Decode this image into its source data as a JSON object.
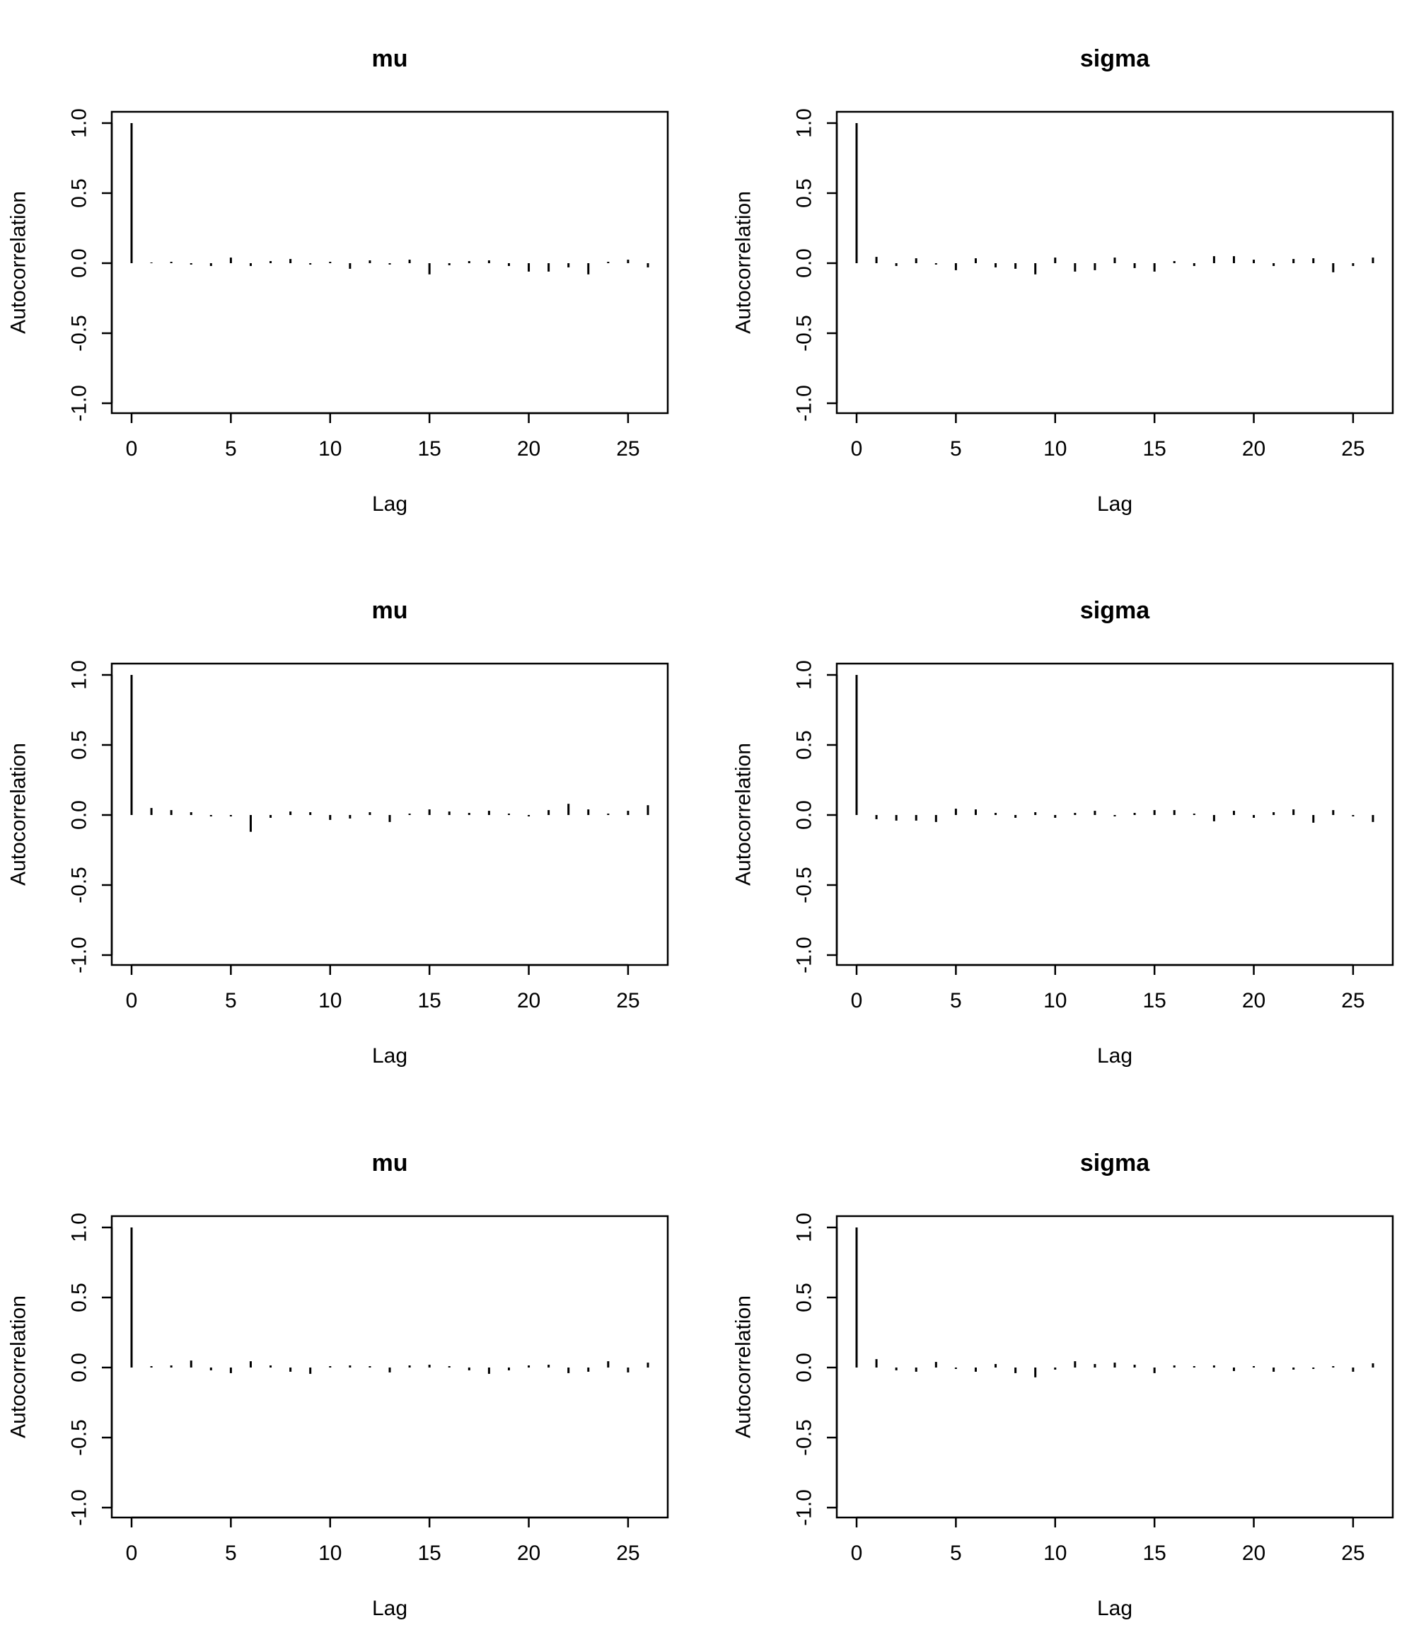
{
  "chart_data": [
    {
      "type": "bar",
      "title": "mu",
      "xlabel": "Lag",
      "ylabel": "Autocorrelation",
      "xlim": [
        0,
        26
      ],
      "ylim": [
        -1.0,
        1.0
      ],
      "xticks": [
        "0",
        "5",
        "10",
        "15",
        "20",
        "25"
      ],
      "yticks": [
        "-1.0",
        "-0.5",
        "0.0",
        "0.5",
        "1.0"
      ],
      "lags": [
        0,
        1,
        2,
        3,
        4,
        5,
        6,
        7,
        8,
        9,
        10,
        11,
        12,
        13,
        14,
        15,
        16,
        17,
        18,
        19,
        20,
        21,
        22,
        23,
        24,
        25,
        26
      ],
      "values": [
        1.0,
        0.005,
        0.01,
        -0.01,
        -0.02,
        0.04,
        -0.02,
        0.015,
        0.03,
        -0.01,
        0.01,
        -0.04,
        0.02,
        -0.01,
        0.025,
        -0.08,
        -0.015,
        0.015,
        0.02,
        -0.02,
        -0.06,
        -0.06,
        -0.03,
        -0.08,
        0.01,
        0.025,
        -0.03
      ]
    },
    {
      "type": "bar",
      "title": "sigma",
      "xlabel": "Lag",
      "ylabel": "Autocorrelation",
      "xlim": [
        0,
        26
      ],
      "ylim": [
        -1.0,
        1.0
      ],
      "xticks": [
        "0",
        "5",
        "10",
        "15",
        "20",
        "25"
      ],
      "yticks": [
        "-1.0",
        "-0.5",
        "0.0",
        "0.5",
        "1.0"
      ],
      "lags": [
        0,
        1,
        2,
        3,
        4,
        5,
        6,
        7,
        8,
        9,
        10,
        11,
        12,
        13,
        14,
        15,
        16,
        17,
        18,
        19,
        20,
        21,
        22,
        23,
        24,
        25,
        26
      ],
      "values": [
        1.0,
        0.045,
        -0.02,
        0.035,
        -0.01,
        -0.05,
        0.035,
        -0.03,
        -0.04,
        -0.08,
        0.04,
        -0.06,
        -0.05,
        0.04,
        -0.035,
        -0.06,
        0.015,
        -0.02,
        0.05,
        0.05,
        0.025,
        -0.02,
        0.03,
        0.035,
        -0.065,
        -0.02,
        0.04
      ]
    },
    {
      "type": "bar",
      "title": "mu",
      "xlabel": "Lag",
      "ylabel": "Autocorrelation",
      "xlim": [
        0,
        26
      ],
      "ylim": [
        -1.0,
        1.0
      ],
      "xticks": [
        "0",
        "5",
        "10",
        "15",
        "20",
        "25"
      ],
      "yticks": [
        "-1.0",
        "-0.5",
        "0.0",
        "0.5",
        "1.0"
      ],
      "lags": [
        0,
        1,
        2,
        3,
        4,
        5,
        6,
        7,
        8,
        9,
        10,
        11,
        12,
        13,
        14,
        15,
        16,
        17,
        18,
        19,
        20,
        21,
        22,
        23,
        24,
        25,
        26
      ],
      "values": [
        1.0,
        0.05,
        0.035,
        0.02,
        -0.01,
        -0.01,
        -0.12,
        -0.02,
        0.025,
        0.02,
        -0.035,
        -0.025,
        0.02,
        -0.05,
        0.01,
        0.04,
        0.025,
        0.015,
        0.03,
        0.01,
        -0.01,
        0.035,
        0.08,
        0.04,
        0.01,
        0.03,
        0.07
      ]
    },
    {
      "type": "bar",
      "title": "sigma",
      "xlabel": "Lag",
      "ylabel": "Autocorrelation",
      "xlim": [
        0,
        26
      ],
      "ylim": [
        -1.0,
        1.0
      ],
      "xticks": [
        "0",
        "5",
        "10",
        "15",
        "20",
        "25"
      ],
      "yticks": [
        "-1.0",
        "-0.5",
        "0.0",
        "0.5",
        "1.0"
      ],
      "lags": [
        0,
        1,
        2,
        3,
        4,
        5,
        6,
        7,
        8,
        9,
        10,
        11,
        12,
        13,
        14,
        15,
        16,
        17,
        18,
        19,
        20,
        21,
        22,
        23,
        24,
        25,
        26
      ],
      "values": [
        1.0,
        -0.03,
        -0.04,
        -0.04,
        -0.05,
        0.045,
        0.04,
        0.015,
        -0.02,
        0.02,
        -0.02,
        0.015,
        0.03,
        -0.01,
        0.015,
        0.035,
        0.035,
        0.01,
        -0.045,
        0.03,
        -0.02,
        0.02,
        0.04,
        -0.055,
        0.035,
        -0.01,
        -0.05
      ]
    },
    {
      "type": "bar",
      "title": "mu",
      "xlabel": "Lag",
      "ylabel": "Autocorrelation",
      "xlim": [
        0,
        26
      ],
      "ylim": [
        -1.0,
        1.0
      ],
      "xticks": [
        "0",
        "5",
        "10",
        "15",
        "20",
        "25"
      ],
      "yticks": [
        "-1.0",
        "-0.5",
        "0.0",
        "0.5",
        "1.0"
      ],
      "lags": [
        0,
        1,
        2,
        3,
        4,
        5,
        6,
        7,
        8,
        9,
        10,
        11,
        12,
        13,
        14,
        15,
        16,
        17,
        18,
        19,
        20,
        21,
        22,
        23,
        24,
        25,
        26
      ],
      "values": [
        1.0,
        0.01,
        0.015,
        0.05,
        -0.02,
        -0.04,
        0.045,
        0.015,
        -0.03,
        -0.045,
        0.01,
        0.015,
        0.01,
        -0.035,
        0.015,
        0.02,
        0.01,
        -0.02,
        -0.045,
        -0.02,
        0.015,
        0.02,
        -0.04,
        -0.03,
        0.045,
        -0.035,
        0.035
      ]
    },
    {
      "type": "bar",
      "title": "sigma",
      "xlabel": "Lag",
      "ylabel": "Autocorrelation",
      "xlim": [
        0,
        26
      ],
      "ylim": [
        -1.0,
        1.0
      ],
      "xticks": [
        "0",
        "5",
        "10",
        "15",
        "20",
        "25"
      ],
      "yticks": [
        "-1.0",
        "-0.5",
        "0.0",
        "0.5",
        "1.0"
      ],
      "lags": [
        0,
        1,
        2,
        3,
        4,
        5,
        6,
        7,
        8,
        9,
        10,
        11,
        12,
        13,
        14,
        15,
        16,
        17,
        18,
        19,
        20,
        21,
        22,
        23,
        24,
        25,
        26
      ],
      "values": [
        1.0,
        0.06,
        -0.02,
        -0.03,
        0.04,
        -0.01,
        -0.03,
        0.025,
        -0.04,
        -0.07,
        -0.015,
        0.045,
        0.025,
        0.035,
        0.02,
        -0.04,
        0.015,
        0.01,
        0.015,
        -0.025,
        0.01,
        -0.03,
        -0.015,
        -0.01,
        0.01,
        -0.03,
        0.03
      ]
    }
  ]
}
